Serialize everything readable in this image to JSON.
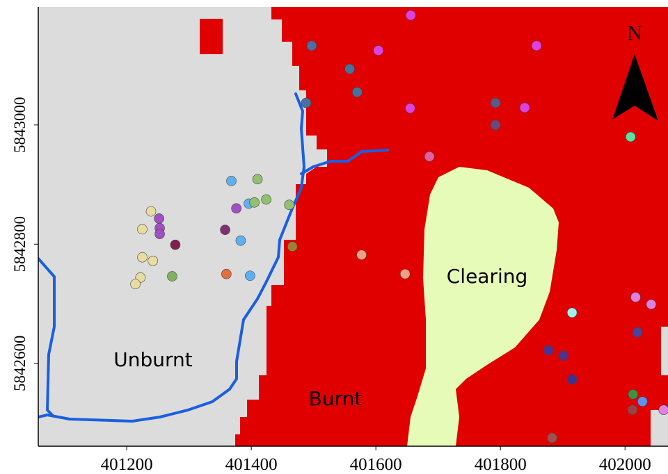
{
  "map": {
    "xlim": [
      401058,
      402069
    ],
    "ylim": [
      5842461,
      5843198
    ],
    "xticks": [
      401200,
      401400,
      401600,
      401800,
      402000
    ],
    "yticks": [
      5842600,
      5842800,
      5843000
    ],
    "labels": {
      "unburnt": "Unburnt",
      "burnt": "Burnt",
      "clearing": "Clearing"
    },
    "north": "N",
    "points": [
      {
        "x": 401656,
        "y": 5843184,
        "color": "#e040e0"
      },
      {
        "x": 401497,
        "y": 5843133,
        "color": "#4a6fa0"
      },
      {
        "x": 401604,
        "y": 5843125,
        "color": "#e040e0"
      },
      {
        "x": 401858,
        "y": 5843133,
        "color": "#e040e0"
      },
      {
        "x": 401558,
        "y": 5843094,
        "color": "#4a70a0"
      },
      {
        "x": 401570,
        "y": 5843055,
        "color": "#4a70a0"
      },
      {
        "x": 401488,
        "y": 5843037,
        "color": "#4a70a0"
      },
      {
        "x": 401655,
        "y": 5843028,
        "color": "#e040e0"
      },
      {
        "x": 401792,
        "y": 5843037,
        "color": "#5a5a8a"
      },
      {
        "x": 401839,
        "y": 5843029,
        "color": "#e040e0"
      },
      {
        "x": 401792,
        "y": 5843000,
        "color": "#6a4a7a"
      },
      {
        "x": 402009,
        "y": 5842980,
        "color": "#60e0a0"
      },
      {
        "x": 401686,
        "y": 5842947,
        "color": "#e060a0"
      },
      {
        "x": 401368,
        "y": 5842906,
        "color": "#60b0f0"
      },
      {
        "x": 401410,
        "y": 5842909,
        "color": "#90c070"
      },
      {
        "x": 401239,
        "y": 5842855,
        "color": "#e8dca0"
      },
      {
        "x": 401376,
        "y": 5842860,
        "color": "#a050c0"
      },
      {
        "x": 401396,
        "y": 5842868,
        "color": "#60b0f0"
      },
      {
        "x": 401405,
        "y": 5842870,
        "color": "#90c070"
      },
      {
        "x": 401424,
        "y": 5842875,
        "color": "#90c070"
      },
      {
        "x": 401461,
        "y": 5842866,
        "color": "#90c070"
      },
      {
        "x": 401252,
        "y": 5842843,
        "color": "#a050c0"
      },
      {
        "x": 401225,
        "y": 5842825,
        "color": "#e8dca0"
      },
      {
        "x": 401253,
        "y": 5842827,
        "color": "#a050c0"
      },
      {
        "x": 401253,
        "y": 5842817,
        "color": "#a050c0"
      },
      {
        "x": 401358,
        "y": 5842824,
        "color": "#803070"
      },
      {
        "x": 401278,
        "y": 5842799,
        "color": "#802050"
      },
      {
        "x": 401383,
        "y": 5842806,
        "color": "#60b0f0"
      },
      {
        "x": 401466,
        "y": 5842796,
        "color": "#a08030"
      },
      {
        "x": 401577,
        "y": 5842782,
        "color": "#f0a080"
      },
      {
        "x": 401225,
        "y": 5842778,
        "color": "#e8dca0"
      },
      {
        "x": 401242,
        "y": 5842772,
        "color": "#e8dca0"
      },
      {
        "x": 401647,
        "y": 5842750,
        "color": "#f0a080"
      },
      {
        "x": 401360,
        "y": 5842750,
        "color": "#e07040"
      },
      {
        "x": 401273,
        "y": 5842746,
        "color": "#80b060"
      },
      {
        "x": 401398,
        "y": 5842747,
        "color": "#60b0f0"
      },
      {
        "x": 401222,
        "y": 5842744,
        "color": "#e8dca0"
      },
      {
        "x": 401214,
        "y": 5842733,
        "color": "#e8dca0"
      },
      {
        "x": 402017,
        "y": 5842711,
        "color": "#e080e0"
      },
      {
        "x": 402042,
        "y": 5842699,
        "color": "#e080e0"
      },
      {
        "x": 401915,
        "y": 5842685,
        "color": "#a0f0f0"
      },
      {
        "x": 402020,
        "y": 5842652,
        "color": "#5040a0"
      },
      {
        "x": 401877,
        "y": 5842622,
        "color": "#503090"
      },
      {
        "x": 401901,
        "y": 5842613,
        "color": "#503090"
      },
      {
        "x": 401915,
        "y": 5842573,
        "color": "#403090"
      },
      {
        "x": 402013,
        "y": 5842548,
        "color": "#409040"
      },
      {
        "x": 402028,
        "y": 5842536,
        "color": "#6090f0"
      },
      {
        "x": 402012,
        "y": 5842522,
        "color": "#a04040"
      },
      {
        "x": 402062,
        "y": 5842522,
        "color": "#e080e0"
      },
      {
        "x": 401883,
        "y": 5842475,
        "color": "#a05050"
      }
    ]
  }
}
